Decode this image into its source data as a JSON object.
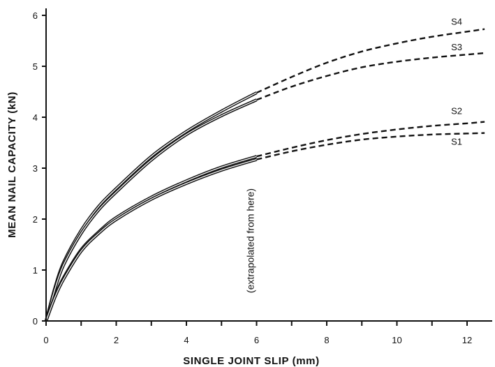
{
  "chart_data": {
    "type": "line",
    "title": "",
    "xlabel": "SINGLE JOINT SLIP (mm)",
    "ylabel": "MEAN NAIL CAPACITY (kN)",
    "xlim": [
      0,
      12.6
    ],
    "ylim": [
      0,
      6.2
    ],
    "x_ticks": [
      0,
      2,
      4,
      6,
      8,
      10,
      12
    ],
    "y_ticks": [
      0,
      1,
      2,
      3,
      4,
      5,
      6
    ],
    "minor_x_step": 1,
    "grid": false,
    "annotation": "(extrapolated from here)",
    "extrapolated_from_x": 6,
    "series": [
      {
        "name": "S4",
        "x": [
          0,
          0.25,
          0.5,
          1,
          1.5,
          2,
          3,
          4,
          5,
          6,
          7,
          8,
          9,
          10,
          11,
          12,
          12.5
        ],
        "y": [
          0,
          0.65,
          1.15,
          1.78,
          2.25,
          2.6,
          3.23,
          3.72,
          4.12,
          4.48,
          4.79,
          5.07,
          5.29,
          5.45,
          5.58,
          5.68,
          5.73
        ]
      },
      {
        "name": "S3",
        "x": [
          0,
          0.25,
          0.5,
          1,
          1.5,
          2,
          3,
          4,
          5,
          6,
          7,
          8,
          9,
          10,
          11,
          12,
          12.5
        ],
        "y": [
          0,
          0.62,
          1.1,
          1.72,
          2.18,
          2.53,
          3.16,
          3.66,
          4.03,
          4.34,
          4.6,
          4.81,
          4.98,
          5.09,
          5.17,
          5.23,
          5.26
        ]
      },
      {
        "name": "S2",
        "x": [
          0,
          0.25,
          0.5,
          1,
          1.5,
          2,
          3,
          4,
          5,
          6,
          7,
          8,
          9,
          10,
          11,
          12,
          12.5
        ],
        "y": [
          0,
          0.48,
          0.85,
          1.4,
          1.75,
          2.03,
          2.43,
          2.75,
          3.02,
          3.23,
          3.4,
          3.55,
          3.67,
          3.76,
          3.83,
          3.88,
          3.91
        ]
      },
      {
        "name": "S1",
        "x": [
          0,
          0.25,
          0.5,
          1,
          1.5,
          2,
          3,
          4,
          5,
          6,
          7,
          8,
          9,
          10,
          11,
          12,
          12.5
        ],
        "y": [
          0,
          0.46,
          0.82,
          1.37,
          1.72,
          1.99,
          2.39,
          2.7,
          2.96,
          3.17,
          3.33,
          3.46,
          3.56,
          3.62,
          3.66,
          3.68,
          3.69
        ]
      }
    ]
  }
}
